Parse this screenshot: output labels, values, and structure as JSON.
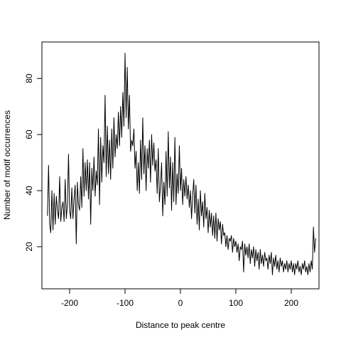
{
  "chart_data": {
    "type": "line",
    "title": "",
    "xlabel": "Distance to peak centre",
    "ylabel": "Number of motif occurrences",
    "xlim": [
      -250,
      250
    ],
    "ylim": [
      5,
      93
    ],
    "x_ticks": [
      -200,
      -100,
      0,
      100,
      200
    ],
    "y_ticks": [
      20,
      40,
      60,
      80
    ],
    "x_tick_labels": [
      "-200",
      "-100",
      "0",
      "100",
      "200"
    ],
    "y_tick_labels": [
      "20",
      "40",
      "60",
      "80"
    ],
    "grid": false,
    "legend": "none",
    "series": [
      {
        "color": "#000000",
        "points": [
          [
            -240,
            31
          ],
          [
            -238,
            49
          ],
          [
            -236,
            28
          ],
          [
            -234,
            25
          ],
          [
            -232,
            40
          ],
          [
            -230,
            26
          ],
          [
            -228,
            39
          ],
          [
            -226,
            28
          ],
          [
            -224,
            38
          ],
          [
            -222,
            33
          ],
          [
            -220,
            30
          ],
          [
            -218,
            45
          ],
          [
            -216,
            29
          ],
          [
            -214,
            34
          ],
          [
            -212,
            36
          ],
          [
            -210,
            29
          ],
          [
            -208,
            44
          ],
          [
            -206,
            30
          ],
          [
            -204,
            35
          ],
          [
            -202,
            53
          ],
          [
            -200,
            33
          ],
          [
            -198,
            30
          ],
          [
            -196,
            41
          ],
          [
            -194,
            30
          ],
          [
            -192,
            37
          ],
          [
            -190,
            42
          ],
          [
            -188,
            21
          ],
          [
            -186,
            43
          ],
          [
            -184,
            35
          ],
          [
            -182,
            33
          ],
          [
            -180,
            45
          ],
          [
            -178,
            34
          ],
          [
            -176,
            55
          ],
          [
            -174,
            38
          ],
          [
            -172,
            50
          ],
          [
            -170,
            40
          ],
          [
            -168,
            51
          ],
          [
            -166,
            37
          ],
          [
            -164,
            50
          ],
          [
            -162,
            28
          ],
          [
            -160,
            48
          ],
          [
            -158,
            40
          ],
          [
            -156,
            52
          ],
          [
            -154,
            38
          ],
          [
            -152,
            47
          ],
          [
            -150,
            42
          ],
          [
            -148,
            62
          ],
          [
            -146,
            35
          ],
          [
            -144,
            59
          ],
          [
            -142,
            43
          ],
          [
            -140,
            56
          ],
          [
            -138,
            50
          ],
          [
            -136,
            74
          ],
          [
            -134,
            45
          ],
          [
            -132,
            63
          ],
          [
            -130,
            46
          ],
          [
            -128,
            58
          ],
          [
            -126,
            44
          ],
          [
            -124,
            62
          ],
          [
            -122,
            48
          ],
          [
            -120,
            66
          ],
          [
            -118,
            52
          ],
          [
            -116,
            60
          ],
          [
            -114,
            55
          ],
          [
            -112,
            68
          ],
          [
            -110,
            56
          ],
          [
            -108,
            70
          ],
          [
            -106,
            59
          ],
          [
            -104,
            75
          ],
          [
            -102,
            63
          ],
          [
            -100,
            89
          ],
          [
            -98,
            66
          ],
          [
            -96,
            84
          ],
          [
            -94,
            62
          ],
          [
            -92,
            74
          ],
          [
            -90,
            54
          ],
          [
            -88,
            58
          ],
          [
            -86,
            56
          ],
          [
            -84,
            62
          ],
          [
            -82,
            48
          ],
          [
            -80,
            54
          ],
          [
            -78,
            40
          ],
          [
            -76,
            50
          ],
          [
            -74,
            39
          ],
          [
            -72,
            58
          ],
          [
            -70,
            44
          ],
          [
            -68,
            66
          ],
          [
            -66,
            46
          ],
          [
            -64,
            56
          ],
          [
            -62,
            40
          ],
          [
            -60,
            55
          ],
          [
            -58,
            48
          ],
          [
            -56,
            58
          ],
          [
            -54,
            43
          ],
          [
            -52,
            60
          ],
          [
            -50,
            49
          ],
          [
            -48,
            57
          ],
          [
            -46,
            47
          ],
          [
            -44,
            51
          ],
          [
            -42,
            39
          ],
          [
            -40,
            55
          ],
          [
            -38,
            36
          ],
          [
            -36,
            42
          ],
          [
            -34,
            50
          ],
          [
            -32,
            31
          ],
          [
            -30,
            43
          ],
          [
            -28,
            35
          ],
          [
            -26,
            54
          ],
          [
            -24,
            38
          ],
          [
            -22,
            61
          ],
          [
            -20,
            41
          ],
          [
            -18,
            52
          ],
          [
            -16,
            33
          ],
          [
            -14,
            50
          ],
          [
            -12,
            36
          ],
          [
            -10,
            59
          ],
          [
            -8,
            35
          ],
          [
            -6,
            46
          ],
          [
            -4,
            39
          ],
          [
            -2,
            56
          ],
          [
            0,
            40
          ],
          [
            2,
            48
          ],
          [
            4,
            35
          ],
          [
            6,
            44
          ],
          [
            8,
            38
          ],
          [
            10,
            45
          ],
          [
            12,
            37
          ],
          [
            14,
            42
          ],
          [
            16,
            34
          ],
          [
            18,
            40
          ],
          [
            20,
            30
          ],
          [
            22,
            38
          ],
          [
            24,
            44
          ],
          [
            26,
            32
          ],
          [
            28,
            42
          ],
          [
            30,
            28
          ],
          [
            32,
            37
          ],
          [
            34,
            26
          ],
          [
            36,
            40
          ],
          [
            38,
            31
          ],
          [
            40,
            36
          ],
          [
            42,
            27
          ],
          [
            44,
            39
          ],
          [
            46,
            30
          ],
          [
            48,
            34
          ],
          [
            50,
            25
          ],
          [
            52,
            33
          ],
          [
            54,
            27
          ],
          [
            56,
            32
          ],
          [
            58,
            24
          ],
          [
            60,
            31
          ],
          [
            62,
            23
          ],
          [
            64,
            32
          ],
          [
            66,
            22
          ],
          [
            68,
            30
          ],
          [
            70,
            26
          ],
          [
            72,
            29
          ],
          [
            74,
            21
          ],
          [
            76,
            28
          ],
          [
            78,
            24
          ],
          [
            80,
            25
          ],
          [
            82,
            20
          ],
          [
            84,
            24
          ],
          [
            86,
            19
          ],
          [
            88,
            23
          ],
          [
            90,
            22
          ],
          [
            92,
            24
          ],
          [
            94,
            18
          ],
          [
            96,
            23
          ],
          [
            98,
            20
          ],
          [
            100,
            22
          ],
          [
            102,
            18
          ],
          [
            104,
            21
          ],
          [
            106,
            15
          ],
          [
            108,
            20
          ],
          [
            110,
            19
          ],
          [
            112,
            22
          ],
          [
            114,
            11
          ],
          [
            116,
            21
          ],
          [
            118,
            17
          ],
          [
            120,
            20
          ],
          [
            122,
            16
          ],
          [
            124,
            21
          ],
          [
            126,
            14
          ],
          [
            128,
            19
          ],
          [
            130,
            16
          ],
          [
            132,
            20
          ],
          [
            134,
            13
          ],
          [
            136,
            19
          ],
          [
            138,
            15
          ],
          [
            140,
            18
          ],
          [
            142,
            12
          ],
          [
            144,
            19
          ],
          [
            146,
            14
          ],
          [
            148,
            17
          ],
          [
            150,
            13
          ],
          [
            152,
            18
          ],
          [
            154,
            15
          ],
          [
            156,
            16
          ],
          [
            158,
            12
          ],
          [
            160,
            17
          ],
          [
            162,
            14
          ],
          [
            164,
            18
          ],
          [
            166,
            10
          ],
          [
            168,
            16
          ],
          [
            170,
            13
          ],
          [
            172,
            17
          ],
          [
            174,
            12
          ],
          [
            176,
            15
          ],
          [
            178,
            11
          ],
          [
            180,
            16
          ],
          [
            182,
            13
          ],
          [
            184,
            15
          ],
          [
            186,
            11
          ],
          [
            188,
            14
          ],
          [
            190,
            12
          ],
          [
            192,
            15
          ],
          [
            194,
            11
          ],
          [
            196,
            14
          ],
          [
            198,
            12
          ],
          [
            200,
            15
          ],
          [
            202,
            11
          ],
          [
            204,
            14
          ],
          [
            206,
            10
          ],
          [
            208,
            14
          ],
          [
            210,
            12
          ],
          [
            212,
            15
          ],
          [
            214,
            11
          ],
          [
            216,
            13
          ],
          [
            218,
            10
          ],
          [
            220,
            14
          ],
          [
            222,
            12
          ],
          [
            224,
            15
          ],
          [
            226,
            11
          ],
          [
            228,
            13
          ],
          [
            230,
            10
          ],
          [
            232,
            14
          ],
          [
            234,
            11
          ],
          [
            236,
            15
          ],
          [
            238,
            12
          ],
          [
            240,
            27
          ],
          [
            242,
            18
          ],
          [
            244,
            23
          ]
        ]
      }
    ]
  }
}
